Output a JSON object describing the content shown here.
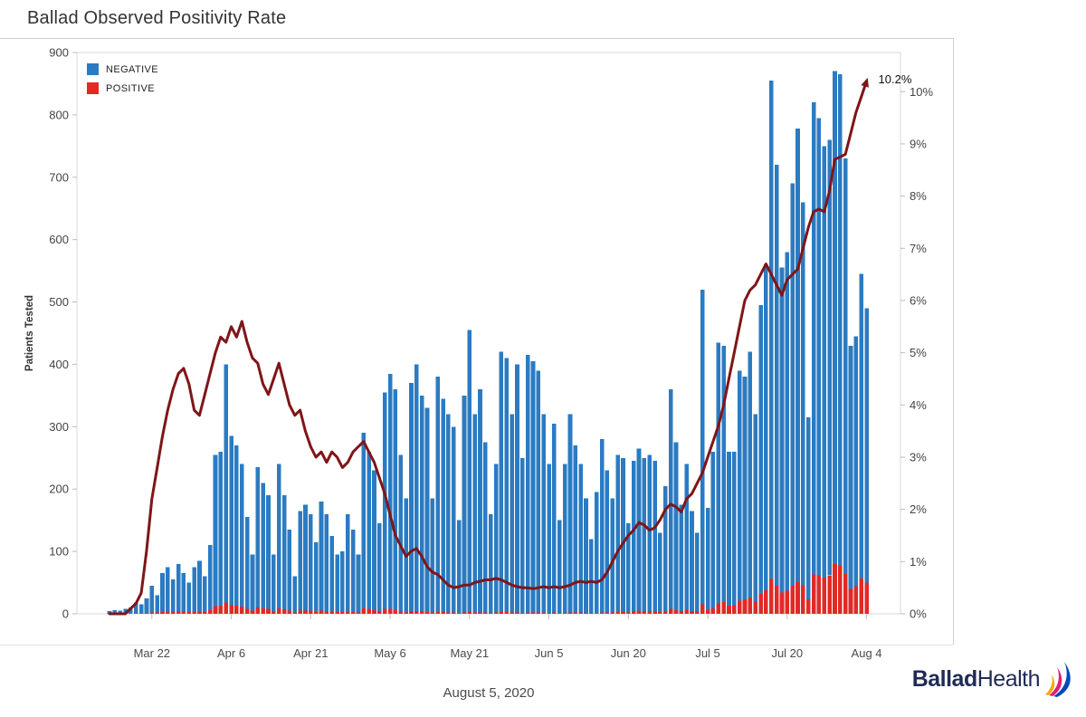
{
  "header": {
    "title": "Ballad Observed Positivity Rate"
  },
  "legend": {
    "negative": "NEGATIVE",
    "positive": "POSITIVE"
  },
  "annotation": {
    "label": "10.2%"
  },
  "footer": {
    "date": "August 5, 2020"
  },
  "logo": {
    "bold": "Ballad",
    "light": "Health",
    "icon_colors": [
      "#f2a900",
      "#e31c79",
      "#0047bb"
    ]
  },
  "chart_data": {
    "type": "bar",
    "subtype": "stacked-bars-with-line",
    "title": "Ballad Observed Positivity Rate",
    "ylabel_left": "Patients Tested",
    "y_left_ticks": [
      0,
      100,
      200,
      300,
      400,
      500,
      600,
      700,
      800,
      900
    ],
    "y_left_max": 900,
    "y_right_ticks": [
      "0%",
      "1%",
      "2%",
      "3%",
      "4%",
      "5%",
      "6%",
      "7%",
      "8%",
      "9%",
      "10%"
    ],
    "y_right_max_pct": 10.75,
    "legend_position": "top-left-inside",
    "grid": false,
    "x_ticks": [
      {
        "label": "Mar 22",
        "index": 8
      },
      {
        "label": "Apr 6",
        "index": 23
      },
      {
        "label": "Apr 21",
        "index": 38
      },
      {
        "label": "May 6",
        "index": 53
      },
      {
        "label": "May 21",
        "index": 68
      },
      {
        "label": "Jun 5",
        "index": 83
      },
      {
        "label": "Jun 20",
        "index": 98
      },
      {
        "label": "Jul 5",
        "index": 113
      },
      {
        "label": "Jul 20",
        "index": 128
      },
      {
        "label": "Aug 4",
        "index": 143
      }
    ],
    "series": {
      "positive": [
        0,
        0,
        0,
        0,
        0,
        1,
        1,
        1,
        2,
        2,
        3,
        3,
        3,
        4,
        3,
        3,
        3,
        3,
        3,
        6,
        12,
        13,
        18,
        14,
        13,
        12,
        8,
        5,
        10,
        9,
        8,
        4,
        9,
        7,
        5,
        2,
        5,
        5,
        5,
        3,
        5,
        4,
        3,
        3,
        3,
        4,
        3,
        2,
        9,
        8,
        6,
        4,
        8,
        8,
        6,
        4,
        2,
        4,
        4,
        4,
        3,
        2,
        3,
        3,
        2,
        2,
        1,
        2,
        3,
        2,
        2,
        2,
        1,
        2,
        3,
        3,
        2,
        2,
        1,
        2,
        2,
        2,
        2,
        1,
        2,
        1,
        1,
        2,
        2,
        2,
        1,
        1,
        1,
        2,
        2,
        2,
        3,
        4,
        2,
        4,
        5,
        4,
        4,
        4,
        3,
        4,
        8,
        6,
        4,
        6,
        4,
        4,
        15,
        6,
        9,
        17,
        19,
        13,
        14,
        21,
        23,
        26,
        20,
        32,
        38,
        56,
        45,
        34,
        37,
        45,
        51,
        46,
        23,
        63,
        62,
        58,
        62,
        80,
        78,
        64,
        40,
        44,
        57,
        50
      ],
      "negative": [
        4,
        6,
        5,
        8,
        10,
        17,
        14,
        24,
        43,
        28,
        62,
        72,
        52,
        76,
        62,
        47,
        72,
        82,
        57,
        104,
        243,
        247,
        382,
        271,
        257,
        228,
        147,
        90,
        225,
        201,
        182,
        91,
        231,
        183,
        130,
        58,
        160,
        170,
        155,
        112,
        175,
        156,
        122,
        92,
        97,
        156,
        132,
        93,
        281,
        252,
        224,
        141,
        347,
        377,
        354,
        251,
        183,
        366,
        396,
        346,
        327,
        183,
        377,
        342,
        318,
        298,
        149,
        348,
        452,
        318,
        358,
        273,
        159,
        238,
        417,
        407,
        318,
        398,
        249,
        413,
        403,
        388,
        318,
        239,
        303,
        149,
        239,
        318,
        268,
        238,
        184,
        119,
        194,
        278,
        228,
        183,
        252,
        246,
        143,
        241,
        260,
        246,
        251,
        241,
        127,
        201,
        352,
        269,
        171,
        234,
        161,
        126,
        505,
        164,
        251,
        418,
        411,
        247,
        246,
        369,
        357,
        394,
        300,
        463,
        522,
        799,
        675,
        521,
        543,
        645,
        727,
        614,
        292,
        757,
        733,
        692,
        698,
        790,
        787,
        666,
        390,
        401,
        488,
        440
      ],
      "positivity_rate_pct": [
        0,
        0,
        0,
        0,
        0.1,
        0.2,
        0.4,
        1.2,
        2.2,
        2.8,
        3.4,
        3.9,
        4.3,
        4.6,
        4.7,
        4.4,
        3.9,
        3.8,
        4.2,
        4.6,
        5,
        5.3,
        5.2,
        5.5,
        5.3,
        5.6,
        5.2,
        4.9,
        4.8,
        4.4,
        4.2,
        4.5,
        4.8,
        4.4,
        4,
        3.8,
        3.9,
        3.5,
        3.2,
        3,
        3.1,
        2.9,
        3.1,
        3,
        2.8,
        2.9,
        3.1,
        3.2,
        3.3,
        3.1,
        2.9,
        2.6,
        2.3,
        1.9,
        1.5,
        1.3,
        1.1,
        1.2,
        1.25,
        1.1,
        0.9,
        0.8,
        0.75,
        0.65,
        0.55,
        0.5,
        0.52,
        0.55,
        0.55,
        0.6,
        0.62,
        0.65,
        0.65,
        0.68,
        0.65,
        0.6,
        0.55,
        0.52,
        0.5,
        0.5,
        0.48,
        0.5,
        0.52,
        0.5,
        0.52,
        0.5,
        0.52,
        0.55,
        0.6,
        0.62,
        0.6,
        0.62,
        0.6,
        0.65,
        0.8,
        1,
        1.2,
        1.35,
        1.5,
        1.6,
        1.75,
        1.7,
        1.6,
        1.65,
        1.8,
        2,
        2.1,
        2.05,
        1.95,
        2.2,
        2.3,
        2.5,
        2.7,
        3,
        3.3,
        3.6,
        4,
        4.5,
        5,
        5.5,
        6,
        6.2,
        6.3,
        6.5,
        6.7,
        6.5,
        6.3,
        6.1,
        6.4,
        6.5,
        6.6,
        7,
        7.4,
        7.7,
        7.75,
        7.7,
        8.1,
        8.7,
        8.75,
        8.8,
        9.2,
        9.6,
        9.9,
        10.2
      ]
    },
    "colors": {
      "negative": "#2b7bc2",
      "positive": "#e12a26",
      "rate_line": "#7f1518"
    }
  }
}
